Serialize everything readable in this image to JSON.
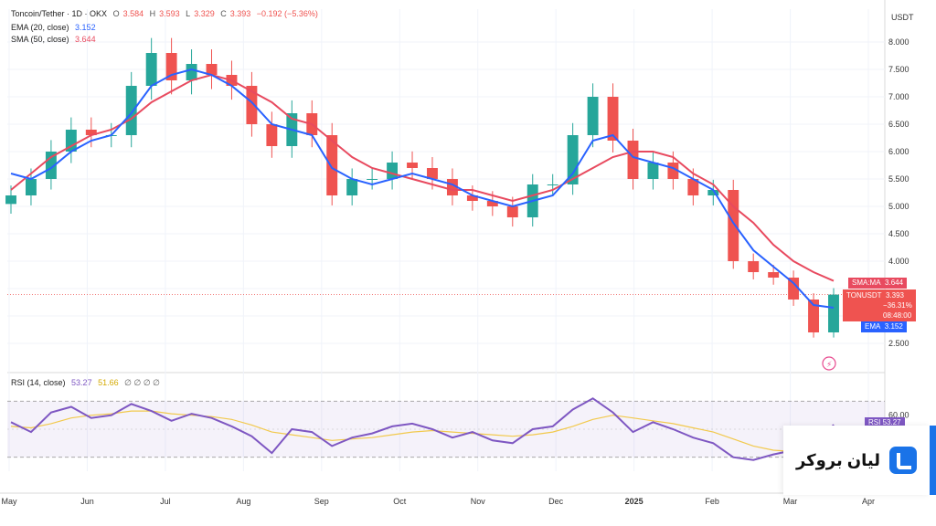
{
  "legend": {
    "symbol": "Toncoin/Tether · 1D · OKX",
    "open_label": "O",
    "open": "3.584",
    "high_label": "H",
    "high": "3.593",
    "low_label": "L",
    "low": "3.329",
    "close_label": "C",
    "close": "3.393",
    "change": "−0.192 (−5.36%)",
    "ema_label": "EMA (20, close)",
    "ema_value": "3.152",
    "sma_label": "SMA (50, close)",
    "sma_value": "3.644",
    "rsi_label": "RSI (14, close)",
    "rsi_value": "53.27",
    "rsi_ma_value": "51.66",
    "rsi_extra": "∅ ∅ ∅ ∅"
  },
  "axis_currency": "USDT",
  "tags": {
    "sma_label": "SMA:MA",
    "sma_value": "3.644",
    "ton_label": "TONUSDT",
    "ton_value": "3.393",
    "ton_change": "−36.31%",
    "ton_timer": "08:48:00",
    "ema_label": "EMA",
    "ema_value": "3.152",
    "rsi_label": "RSI",
    "rsi_value": "53.27"
  },
  "brand": {
    "name": "لیان بروکر"
  },
  "colors": {
    "up": "#26a69a",
    "down": "#ef5350",
    "ema": "#2962ff",
    "sma": "#e84a5f",
    "rsi": "#7e57c2",
    "rsi_ma": "#f2c94c"
  },
  "chart_data": {
    "type": "candlestick",
    "title": "Toncoin/Tether · 1D · OKX",
    "x_range": [
      "May",
      "Apr"
    ],
    "x_ticks": [
      "May",
      "Jun",
      "Jul",
      "Aug",
      "Sep",
      "Oct",
      "Nov",
      "Dec",
      "2025",
      "Feb",
      "Mar",
      "Apr"
    ],
    "price_ticks": [
      2.5,
      3.0,
      3.5,
      4.0,
      4.5,
      5.0,
      5.5,
      6.0,
      6.5,
      7.0,
      7.5,
      8.0
    ],
    "price_tick_labels": [
      "2.500",
      "",
      "",
      "4.000",
      "4.500",
      "5.000",
      "5.500",
      "6.000",
      "6.500",
      "7.000",
      "7.500",
      "8.000"
    ],
    "ylim": [
      2.0,
      8.6
    ],
    "close": [
      5.2,
      5.5,
      6.0,
      6.4,
      6.3,
      6.3,
      7.2,
      7.8,
      7.3,
      7.6,
      7.4,
      7.2,
      6.5,
      6.1,
      6.7,
      6.3,
      5.2,
      5.5,
      5.5,
      5.8,
      5.7,
      5.5,
      5.2,
      5.1,
      5.0,
      4.8,
      5.4,
      5.4,
      6.3,
      7.0,
      6.2,
      5.5,
      5.8,
      5.5,
      5.2,
      5.3,
      4.0,
      3.8,
      3.7,
      3.3,
      2.7,
      3.39
    ],
    "ema20": [
      5.6,
      5.5,
      5.7,
      6.0,
      6.2,
      6.3,
      6.7,
      7.2,
      7.4,
      7.5,
      7.4,
      7.2,
      6.9,
      6.5,
      6.4,
      6.3,
      5.7,
      5.5,
      5.4,
      5.5,
      5.6,
      5.5,
      5.4,
      5.2,
      5.1,
      5.0,
      5.1,
      5.2,
      5.6,
      6.2,
      6.3,
      5.9,
      5.8,
      5.7,
      5.5,
      5.3,
      4.7,
      4.2,
      3.9,
      3.6,
      3.2,
      3.15
    ],
    "sma50": [
      5.3,
      5.6,
      5.9,
      6.1,
      6.3,
      6.4,
      6.6,
      6.9,
      7.1,
      7.3,
      7.4,
      7.3,
      7.1,
      6.9,
      6.6,
      6.5,
      6.2,
      5.9,
      5.7,
      5.6,
      5.5,
      5.4,
      5.3,
      5.3,
      5.2,
      5.1,
      5.2,
      5.3,
      5.5,
      5.7,
      5.9,
      6.0,
      6.0,
      5.9,
      5.6,
      5.4,
      5.0,
      4.7,
      4.3,
      4.0,
      3.8,
      3.64
    ],
    "rsi_ticks": [
      60
    ],
    "rsi_ylim": [
      20,
      80
    ],
    "rsi_bands": [
      30,
      70
    ],
    "rsi": [
      55,
      48,
      62,
      66,
      58,
      60,
      68,
      63,
      56,
      61,
      58,
      52,
      45,
      33,
      50,
      48,
      38,
      44,
      47,
      52,
      54,
      50,
      44,
      48,
      42,
      40,
      50,
      52,
      64,
      72,
      62,
      48,
      55,
      50,
      44,
      40,
      30,
      28,
      32,
      35,
      33,
      53.27
    ],
    "rsi_ma": [
      52,
      51,
      54,
      58,
      60,
      61,
      63,
      63,
      61,
      60,
      59,
      57,
      53,
      48,
      46,
      44,
      42,
      43,
      44,
      46,
      48,
      49,
      48,
      47,
      46,
      45,
      46,
      48,
      52,
      57,
      60,
      58,
      56,
      54,
      51,
      48,
      43,
      38,
      35,
      34,
      33,
      51.66
    ]
  }
}
